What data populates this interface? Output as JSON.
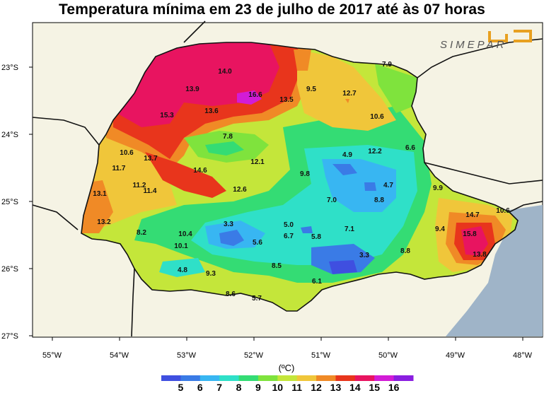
{
  "title": "Temperatura mínima em 23 de julho de 2017 até às 07 horas",
  "logo_text": "SIMEPAR",
  "unit_label": "(ºC)",
  "lat_ticks": [
    "23°S",
    "24°S",
    "25°S",
    "26°S",
    "27°S"
  ],
  "lon_ticks": [
    "55°W",
    "54°W",
    "53°W",
    "52°W",
    "51°W",
    "50°W",
    "49°W",
    "48°W"
  ],
  "legend": {
    "labels": [
      "5",
      "6",
      "7",
      "8",
      "9",
      "10",
      "11",
      "12",
      "13",
      "14",
      "15",
      "16"
    ],
    "colors": [
      "#3f4fe0",
      "#3a7be6",
      "#38b6f2",
      "#2fe0c8",
      "#34dc74",
      "#7fe33d",
      "#c4e63a",
      "#f0c63a",
      "#f08a26",
      "#e8351c",
      "#e81460",
      "#d21cd6",
      "#8a1ee0"
    ]
  },
  "station_values": [
    {
      "v": "14.0"
    },
    {
      "v": "7.9"
    },
    {
      "v": "13.9"
    },
    {
      "v": "16.6"
    },
    {
      "v": "13.5"
    },
    {
      "v": "9.5"
    },
    {
      "v": "12.7"
    },
    {
      "v": "15.3"
    },
    {
      "v": "13.6"
    },
    {
      "v": "10.6"
    },
    {
      "v": "7.8"
    },
    {
      "v": "10.6"
    },
    {
      "v": "13.7"
    },
    {
      "v": "4.9"
    },
    {
      "v": "12.2"
    },
    {
      "v": "6.6"
    },
    {
      "v": "11.7"
    },
    {
      "v": "14.6"
    },
    {
      "v": "12.1"
    },
    {
      "v": "9.8"
    },
    {
      "v": "11.2"
    },
    {
      "v": "11.4"
    },
    {
      "v": "12.6"
    },
    {
      "v": "4.7"
    },
    {
      "v": "9.9"
    },
    {
      "v": "13.1"
    },
    {
      "v": "7.0"
    },
    {
      "v": "8.8"
    },
    {
      "v": "10.6"
    },
    {
      "v": "13.2"
    },
    {
      "v": "3.3"
    },
    {
      "v": "5.0"
    },
    {
      "v": "14.7"
    },
    {
      "v": "8.2"
    },
    {
      "v": "10.4"
    },
    {
      "v": "6.7"
    },
    {
      "v": "5.8"
    },
    {
      "v": "7.1"
    },
    {
      "v": "9.4"
    },
    {
      "v": "15.8"
    },
    {
      "v": "10.1"
    },
    {
      "v": "5.6"
    },
    {
      "v": "8.8"
    },
    {
      "v": "13.8"
    },
    {
      "v": "3.3"
    },
    {
      "v": "4.8"
    },
    {
      "v": "8.5"
    },
    {
      "v": "9.3"
    },
    {
      "v": "6.1"
    },
    {
      "v": "8.6"
    },
    {
      "v": "5.7"
    }
  ]
}
